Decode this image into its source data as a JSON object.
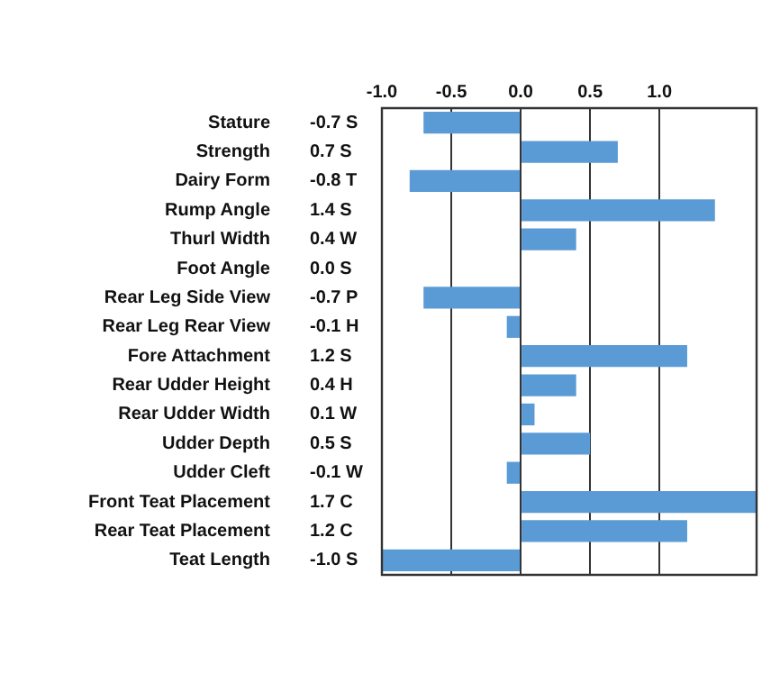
{
  "chart_data": {
    "type": "bar",
    "orientation": "horizontal",
    "categories": [
      "Stature",
      "Strength",
      "Dairy Form",
      "Rump Angle",
      "Thurl Width",
      "Foot Angle",
      "Rear Leg Side View",
      "Rear Leg Rear View",
      "Fore Attachment",
      "Rear Udder Height",
      "Rear Udder Width",
      "Udder Depth",
      "Udder Cleft",
      "Front Teat Placement",
      "Rear Teat Placement",
      "Teat Length"
    ],
    "values": [
      -0.7,
      0.7,
      -0.8,
      1.4,
      0.4,
      0,
      -0.7,
      -0.1,
      1.2,
      0.4,
      0.1,
      0.5,
      -0.1,
      1.7,
      1.2,
      -1.0
    ],
    "value_labels": [
      "-0.7 S",
      "0.7 S",
      "-0.8 T",
      "1.4 S",
      "0.4 W",
      "0.0 S",
      "-0.7 P",
      "-0.1 H",
      "1.2 S",
      "0.4 H",
      "0.1 W",
      "0.5 S",
      "-0.1 W",
      "1.7 C",
      "1.2 C",
      "-1.0 S"
    ],
    "color": "#5b9bd5",
    "xlim": [
      -1,
      1.7
    ],
    "xticks": [
      {
        "value": -1,
        "label": "-1.0"
      },
      {
        "value": -0.5,
        "label": "-0.5"
      },
      {
        "value": 0,
        "label": "0.0"
      },
      {
        "value": 0.5,
        "label": "0.5"
      },
      {
        "value": 1,
        "label": "1.0"
      }
    ],
    "grid": "x"
  }
}
